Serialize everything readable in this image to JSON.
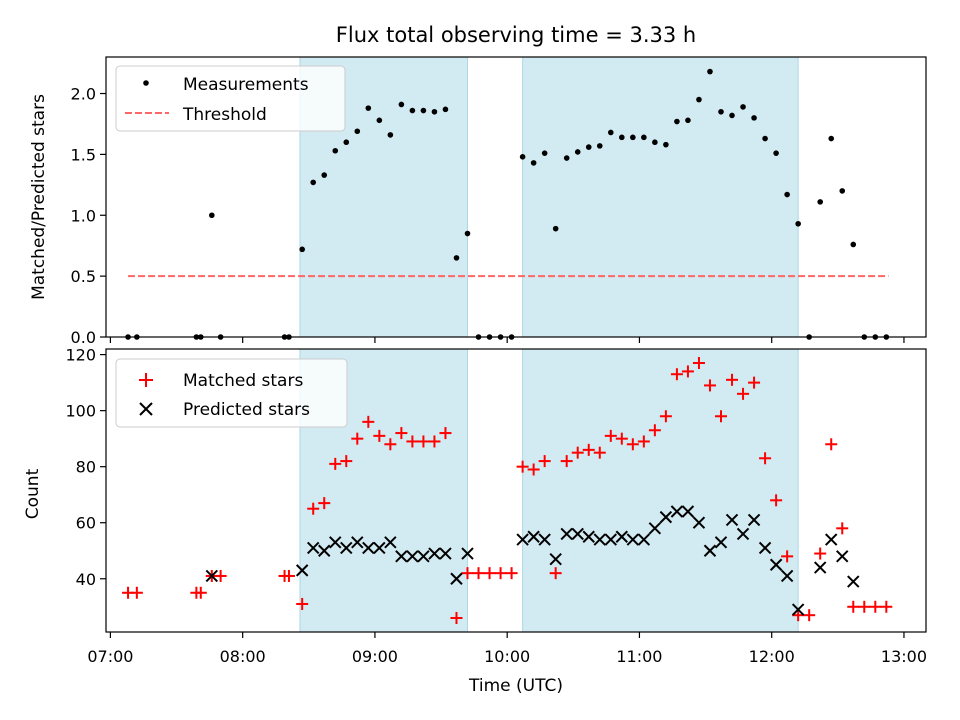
{
  "title": "Flux total observing time = 3.33 h",
  "colors": {
    "shade": "#add8e6",
    "matched": "#ff0000",
    "predicted": "#000000",
    "threshold": "#ff6666",
    "measurement": "#000000"
  },
  "top_ylabel": "Matched/Predicted stars",
  "bottom_ylabel": "Count",
  "xlabel": "Time (UTC)",
  "legend_top": {
    "measurements": "Measurements",
    "threshold": "Threshold"
  },
  "legend_bottom": {
    "matched": "Matched stars",
    "predicted": "Predicted stars"
  },
  "chart_data": [
    {
      "type": "scatter",
      "ylabel": "Matched/Predicted stars",
      "ylim": [
        0,
        2.3
      ],
      "xlim": [
        "06:58",
        "13:10"
      ],
      "yticks": [
        0.0,
        0.5,
        1.0,
        1.5,
        2.0
      ],
      "ytick_labels": [
        "0.0",
        "0.5",
        "1.0",
        "1.5",
        "2.0"
      ],
      "legend": "top-left",
      "shaded_intervals": [
        [
          "08:26",
          "09:42"
        ],
        [
          "10:07",
          "12:12"
        ]
      ],
      "threshold": {
        "value": 0.5,
        "x_range": [
          "07:08",
          "12:53"
        ]
      },
      "series": [
        {
          "name": "Measurements",
          "points": [
            [
              "07:08",
              0
            ],
            [
              "07:12",
              0
            ],
            [
              "07:39",
              0
            ],
            [
              "07:41",
              0
            ],
            [
              "07:46",
              1.0
            ],
            [
              "07:50",
              0
            ],
            [
              "08:19",
              0
            ],
            [
              "08:21",
              0
            ],
            [
              "08:27",
              0.72
            ],
            [
              "08:32",
              1.27
            ],
            [
              "08:37",
              1.33
            ],
            [
              "08:42",
              1.53
            ],
            [
              "08:47",
              1.6
            ],
            [
              "08:52",
              1.69
            ],
            [
              "08:57",
              1.88
            ],
            [
              "09:02",
              1.78
            ],
            [
              "09:07",
              1.66
            ],
            [
              "09:12",
              1.91
            ],
            [
              "09:17",
              1.86
            ],
            [
              "09:22",
              1.86
            ],
            [
              "09:27",
              1.85
            ],
            [
              "09:32",
              1.87
            ],
            [
              "09:37",
              0.65
            ],
            [
              "09:42",
              0.85
            ],
            [
              "09:47",
              0
            ],
            [
              "09:52",
              0
            ],
            [
              "09:57",
              0
            ],
            [
              "10:02",
              0
            ],
            [
              "10:07",
              1.48
            ],
            [
              "10:12",
              1.43
            ],
            [
              "10:17",
              1.51
            ],
            [
              "10:22",
              0.89
            ],
            [
              "10:27",
              1.47
            ],
            [
              "10:32",
              1.52
            ],
            [
              "10:37",
              1.56
            ],
            [
              "10:42",
              1.57
            ],
            [
              "10:47",
              1.68
            ],
            [
              "10:52",
              1.64
            ],
            [
              "10:57",
              1.64
            ],
            [
              "11:02",
              1.64
            ],
            [
              "11:07",
              1.6
            ],
            [
              "11:12",
              1.58
            ],
            [
              "11:17",
              1.77
            ],
            [
              "11:22",
              1.78
            ],
            [
              "11:27",
              1.95
            ],
            [
              "11:32",
              2.18
            ],
            [
              "11:37",
              1.85
            ],
            [
              "11:42",
              1.82
            ],
            [
              "11:47",
              1.89
            ],
            [
              "11:52",
              1.8
            ],
            [
              "11:57",
              1.63
            ],
            [
              "12:02",
              1.51
            ],
            [
              "12:07",
              1.17
            ],
            [
              "12:12",
              0.93
            ],
            [
              "12:17",
              0
            ],
            [
              "12:22",
              1.11
            ],
            [
              "12:27",
              1.63
            ],
            [
              "12:32",
              1.2
            ],
            [
              "12:37",
              0.76
            ],
            [
              "12:42",
              0
            ],
            [
              "12:47",
              0
            ],
            [
              "12:52",
              0
            ]
          ]
        }
      ]
    },
    {
      "type": "scatter",
      "ylabel": "Count",
      "xlabel": "Time (UTC)",
      "ylim": [
        21,
        122
      ],
      "xlim": [
        "06:58",
        "13:10"
      ],
      "yticks": [
        40,
        60,
        80,
        100,
        120
      ],
      "ytick_labels": [
        "40",
        "60",
        "80",
        "100",
        "120"
      ],
      "xticks": [
        "07:00",
        "08:00",
        "09:00",
        "10:00",
        "11:00",
        "12:00",
        "13:00"
      ],
      "xtick_labels": [
        "07:00",
        "08:00",
        "09:00",
        "10:00",
        "11:00",
        "12:00",
        "13:00"
      ],
      "legend": "top-left",
      "shaded_intervals": [
        [
          "08:26",
          "09:42"
        ],
        [
          "10:07",
          "12:12"
        ]
      ],
      "series": [
        {
          "name": "Matched stars",
          "points": [
            [
              "07:08",
              35
            ],
            [
              "07:12",
              35
            ],
            [
              "07:39",
              35
            ],
            [
              "07:41",
              35
            ],
            [
              "07:46",
              41
            ],
            [
              "07:50",
              41
            ],
            [
              "08:19",
              41
            ],
            [
              "08:21",
              41
            ],
            [
              "08:27",
              31
            ],
            [
              "08:32",
              65
            ],
            [
              "08:37",
              67
            ],
            [
              "08:42",
              81
            ],
            [
              "08:47",
              82
            ],
            [
              "08:52",
              90
            ],
            [
              "08:57",
              96
            ],
            [
              "09:02",
              91
            ],
            [
              "09:07",
              88
            ],
            [
              "09:12",
              92
            ],
            [
              "09:17",
              89
            ],
            [
              "09:22",
              89
            ],
            [
              "09:27",
              89
            ],
            [
              "09:32",
              92
            ],
            [
              "09:37",
              26
            ],
            [
              "09:42",
              42
            ],
            [
              "09:47",
              42
            ],
            [
              "09:52",
              42
            ],
            [
              "09:57",
              42
            ],
            [
              "10:02",
              42
            ],
            [
              "10:07",
              80
            ],
            [
              "10:12",
              79
            ],
            [
              "10:17",
              82
            ],
            [
              "10:22",
              42
            ],
            [
              "10:27",
              82
            ],
            [
              "10:32",
              85
            ],
            [
              "10:37",
              86
            ],
            [
              "10:42",
              85
            ],
            [
              "10:47",
              91
            ],
            [
              "10:52",
              90
            ],
            [
              "10:57",
              88
            ],
            [
              "11:02",
              89
            ],
            [
              "11:07",
              93
            ],
            [
              "11:12",
              98
            ],
            [
              "11:17",
              113
            ],
            [
              "11:22",
              114
            ],
            [
              "11:27",
              117
            ],
            [
              "11:32",
              109
            ],
            [
              "11:37",
              98
            ],
            [
              "11:42",
              111
            ],
            [
              "11:47",
              106
            ],
            [
              "11:52",
              110
            ],
            [
              "11:57",
              83
            ],
            [
              "12:02",
              68
            ],
            [
              "12:07",
              48
            ],
            [
              "12:12",
              27
            ],
            [
              "12:17",
              27
            ],
            [
              "12:22",
              49
            ],
            [
              "12:27",
              88
            ],
            [
              "12:32",
              58
            ],
            [
              "12:37",
              30
            ],
            [
              "12:42",
              30
            ],
            [
              "12:47",
              30
            ],
            [
              "12:52",
              30
            ]
          ]
        },
        {
          "name": "Predicted stars",
          "points": [
            [
              "07:46",
              41
            ],
            [
              "08:27",
              43
            ],
            [
              "08:32",
              51
            ],
            [
              "08:37",
              50
            ],
            [
              "08:42",
              53
            ],
            [
              "08:47",
              51
            ],
            [
              "08:52",
              53
            ],
            [
              "08:57",
              51
            ],
            [
              "09:02",
              51
            ],
            [
              "09:07",
              53
            ],
            [
              "09:12",
              48
            ],
            [
              "09:17",
              48
            ],
            [
              "09:22",
              48
            ],
            [
              "09:27",
              49
            ],
            [
              "09:32",
              49
            ],
            [
              "09:37",
              40
            ],
            [
              "09:42",
              49
            ],
            [
              "10:07",
              54
            ],
            [
              "10:12",
              55
            ],
            [
              "10:17",
              54
            ],
            [
              "10:22",
              47
            ],
            [
              "10:27",
              56
            ],
            [
              "10:32",
              56
            ],
            [
              "10:37",
              55
            ],
            [
              "10:42",
              54
            ],
            [
              "10:47",
              54
            ],
            [
              "10:52",
              55
            ],
            [
              "10:57",
              54
            ],
            [
              "11:02",
              54
            ],
            [
              "11:07",
              58
            ],
            [
              "11:12",
              62
            ],
            [
              "11:17",
              64
            ],
            [
              "11:22",
              64
            ],
            [
              "11:27",
              60
            ],
            [
              "11:32",
              50
            ],
            [
              "11:37",
              53
            ],
            [
              "11:42",
              61
            ],
            [
              "11:47",
              56
            ],
            [
              "11:52",
              61
            ],
            [
              "11:57",
              51
            ],
            [
              "12:02",
              45
            ],
            [
              "12:07",
              41
            ],
            [
              "12:12",
              29
            ],
            [
              "12:22",
              44
            ],
            [
              "12:27",
              54
            ],
            [
              "12:32",
              48
            ],
            [
              "12:37",
              39
            ]
          ]
        }
      ]
    }
  ]
}
